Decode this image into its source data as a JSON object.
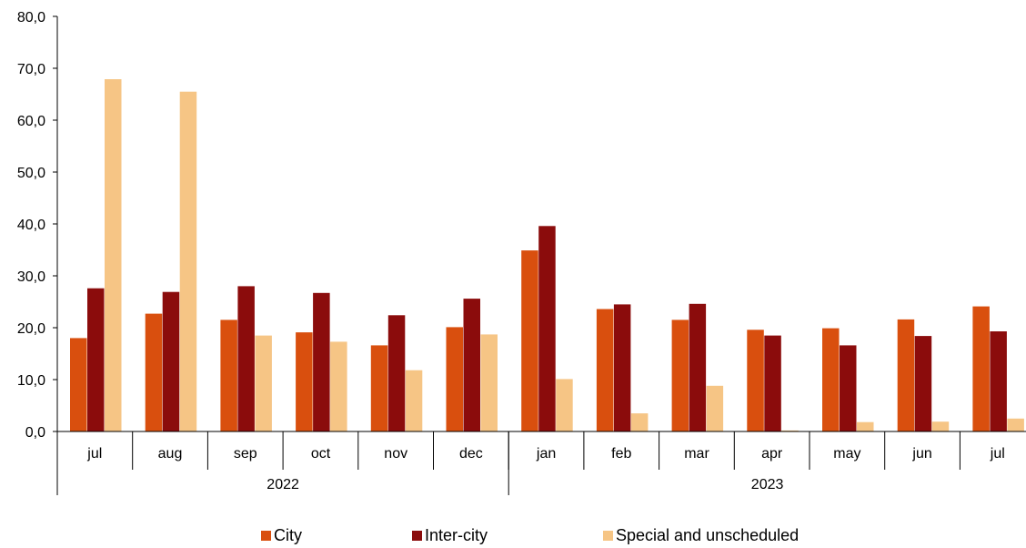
{
  "chart_data": {
    "type": "bar",
    "title": "",
    "xlabel": "",
    "ylabel": "",
    "ylim": [
      0,
      80
    ],
    "y_ticks": [
      "0,0",
      "10,0",
      "20,0",
      "30,0",
      "40,0",
      "50,0",
      "60,0",
      "70,0",
      "80,0"
    ],
    "categories": [
      "jul",
      "aug",
      "sep",
      "oct",
      "nov",
      "dec",
      "jan",
      "feb",
      "mar",
      "apr",
      "may",
      "jun",
      "jul"
    ],
    "year_groups": [
      {
        "label": "2022",
        "count": 6
      },
      {
        "label": "2023",
        "count": 7
      }
    ],
    "series": [
      {
        "name": "City",
        "color": "#d94f0e",
        "values": [
          18.0,
          22.7,
          21.5,
          19.1,
          16.6,
          20.1,
          34.9,
          23.6,
          21.5,
          19.6,
          19.9,
          21.6,
          24.1
        ]
      },
      {
        "name": "Inter-city",
        "color": "#8b0c0c",
        "values": [
          27.6,
          26.9,
          28.0,
          26.7,
          22.4,
          25.6,
          39.6,
          24.5,
          24.6,
          18.5,
          16.6,
          18.4,
          19.3
        ]
      },
      {
        "name": "Special and unscheduled",
        "color": "#f6c585",
        "values": [
          67.9,
          65.5,
          18.5,
          17.3,
          11.8,
          18.7,
          10.1,
          3.5,
          8.8,
          0.2,
          1.8,
          1.9,
          2.5
        ]
      }
    ],
    "legend": {
      "position": "bottom"
    },
    "grid": false
  }
}
